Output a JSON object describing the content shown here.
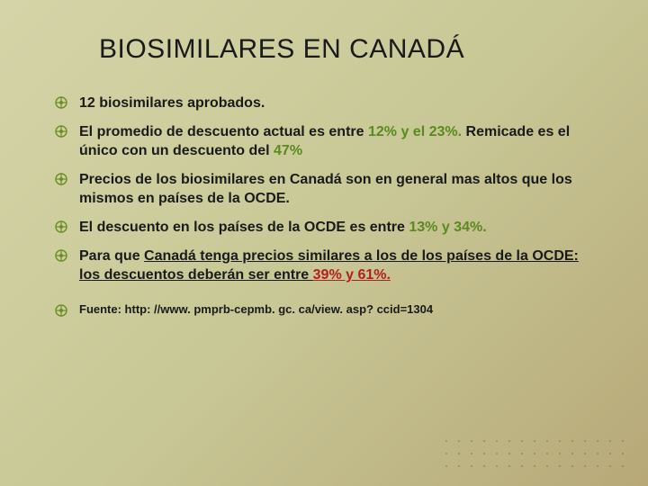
{
  "title": "BIOSIMILARES EN CANADÁ",
  "bullet_icon_color": "#6b8e23",
  "text_color": "#1a1a1a",
  "highlight_green": "#5a8a1f",
  "highlight_red": "#b02020",
  "background_gradient": [
    "#d4d4a8",
    "#c8c896",
    "#b8a878"
  ],
  "title_fontsize": 30,
  "body_fontsize": 16,
  "items": [
    {
      "segments": [
        {
          "text": "12 biosimilares aprobados."
        }
      ]
    },
    {
      "segments": [
        {
          "text": " El promedio de descuento actual es entre "
        },
        {
          "text": "12% y el 23%.",
          "class": "green"
        },
        {
          "text": " Remicade es el único con un descuento del "
        },
        {
          "text": "47%",
          "class": "green"
        }
      ]
    },
    {
      "segments": [
        {
          "text": "Precios de los biosimilares en Canadá son en general mas altos que los mismos en países de la OCDE."
        }
      ]
    },
    {
      "segments": [
        {
          "text": "El descuento en los países de la OCDE es entre "
        },
        {
          "text": "13% y 34%.",
          "class": "green"
        }
      ]
    },
    {
      "segments": [
        {
          "text": "Para que "
        },
        {
          "text": "Canadá tenga precios similares a los de los países de la OCDE:",
          "class": "under"
        },
        {
          "text": " "
        },
        {
          "text": "los descuentos deberán ser entre ",
          "class": "under"
        },
        {
          "text": "39% y 61%.",
          "class": "red under"
        }
      ]
    },
    {
      "source": true,
      "segments": [
        {
          "text": "Fuente: http: //www. pmprb-cepmb. gc. ca/view. asp? ccid=1304"
        }
      ]
    }
  ]
}
